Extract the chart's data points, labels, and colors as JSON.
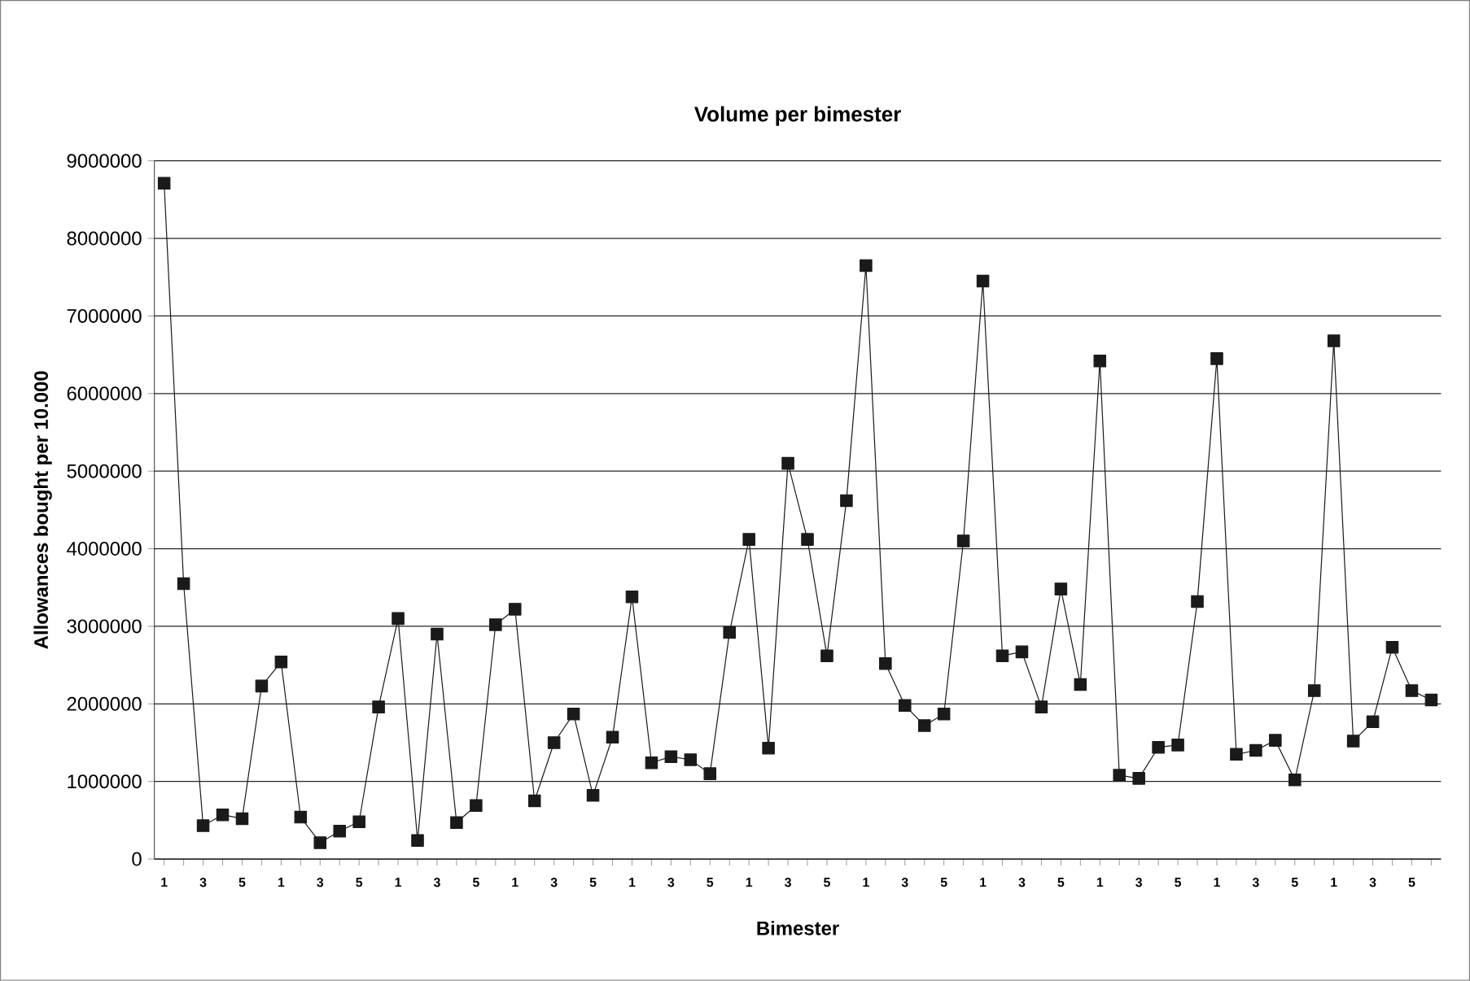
{
  "chart_data": {
    "type": "line",
    "title": "Volume per bimester",
    "xlabel": "Bimester",
    "ylabel": "Allowances bought per 10.000",
    "categories": [
      "1",
      null,
      "3",
      null,
      "5",
      null,
      "1",
      null,
      "3",
      null,
      "5",
      null,
      "1",
      null,
      "3",
      null,
      "5",
      null,
      "1",
      null,
      "3",
      null,
      "5",
      null,
      "1",
      null,
      "3",
      null,
      "5",
      null,
      "1",
      null,
      "3",
      null,
      "5",
      null,
      "1",
      null,
      "3",
      null,
      "5",
      null,
      "1",
      null,
      "3",
      null,
      "5",
      null,
      "1",
      null,
      "3",
      null,
      "5",
      null,
      "1",
      null,
      "3",
      null,
      "5",
      null,
      "1",
      null,
      "3",
      null,
      "5",
      null
    ],
    "series": [
      {
        "color": "#1a1a1a",
        "values": [
          8710000,
          3550000,
          430000,
          570000,
          520000,
          2230000,
          2540000,
          540000,
          210000,
          360000,
          480000,
          1960000,
          3100000,
          240000,
          2900000,
          470000,
          690000,
          3020000,
          3220000,
          750000,
          1500000,
          1870000,
          820000,
          1570000,
          3380000,
          1240000,
          1320000,
          1280000,
          1100000,
          2920000,
          4120000,
          1430000,
          5100000,
          4120000,
          2620000,
          4620000,
          7650000,
          2520000,
          1980000,
          1720000,
          1870000,
          4100000,
          7450000,
          2620000,
          2670000,
          1960000,
          3480000,
          2250000,
          6420000,
          1080000,
          1040000,
          1440000,
          1470000,
          3320000,
          6450000,
          1350000,
          1400000,
          1530000,
          1020000,
          2170000,
          6680000,
          1520000,
          1770000,
          2730000,
          2170000,
          2050000
        ]
      }
    ],
    "ylim": [
      0,
      9000000
    ],
    "yticks": [
      0,
      1000000,
      2000000,
      3000000,
      4000000,
      5000000,
      6000000,
      7000000,
      8000000,
      9000000
    ],
    "grid": "y",
    "marker": "square",
    "line_style": "solid"
  }
}
